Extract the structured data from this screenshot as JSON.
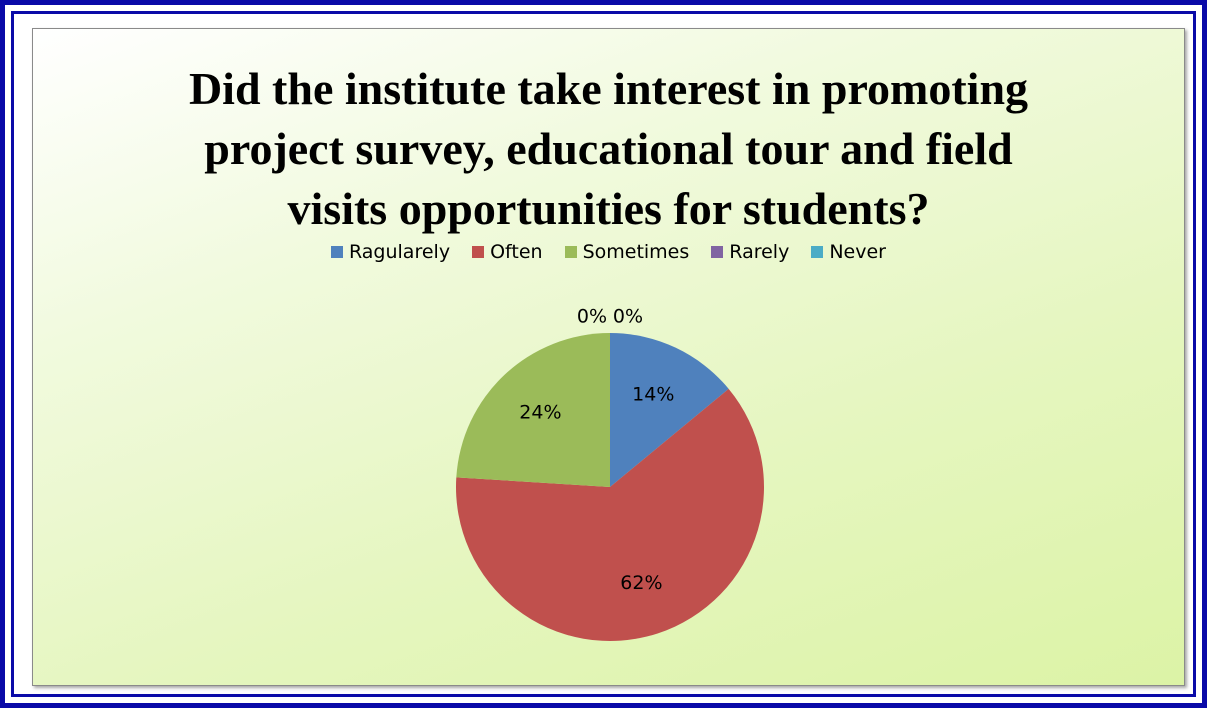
{
  "chart_data": {
    "type": "pie",
    "title_lines": [
      "Did the institute take interest in promoting",
      "project survey, educational tour and field",
      "visits opportunities for students?"
    ],
    "categories": [
      "Ragularely",
      "Often",
      "Sometimes",
      "Rarely",
      "Never"
    ],
    "values": [
      14,
      62,
      24,
      0,
      0
    ],
    "data_labels": [
      "14%",
      "62%",
      "24%",
      "0%",
      "0%"
    ],
    "colors": [
      "#4f81bd",
      "#c0504d",
      "#9bbb59",
      "#8064a2",
      "#4bacc6"
    ],
    "legend_position": "top"
  }
}
